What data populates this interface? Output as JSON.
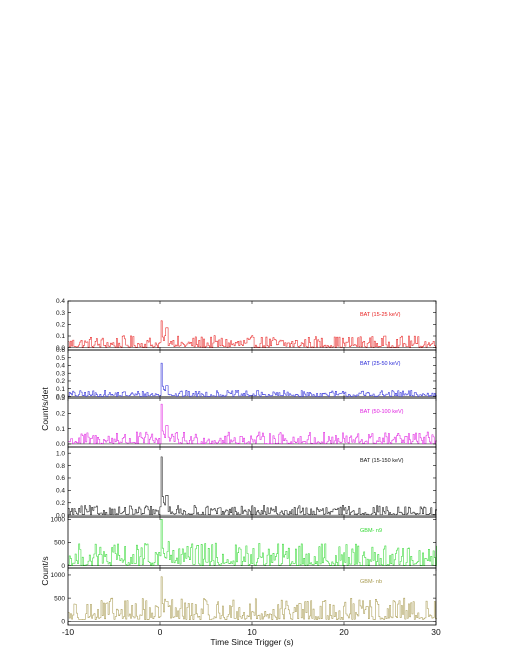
{
  "chart_data": {
    "type": "line",
    "xlabel": "Time Since Trigger (s)",
    "ylabel_groups": [
      {
        "label": "Count/s/det",
        "panels": [
          0,
          1,
          2,
          3
        ]
      },
      {
        "label": "Count/s",
        "panels": [
          4,
          5
        ]
      }
    ],
    "xlim": [
      -10,
      30
    ],
    "xticks": [
      -10,
      0,
      10,
      20,
      30
    ],
    "x_start": -10,
    "x_step": 0.128,
    "panels": [
      {
        "name": "BAT (15-25 keV)",
        "color": "#e82020",
        "ylim": [
          -0.02,
          0.4
        ],
        "yticks": [
          0.0,
          0.1,
          0.2,
          0.3,
          0.4
        ],
        "peak": {
          "x": 0.1,
          "y": 0.23
        },
        "second_peak": {
          "x": 0.7,
          "y": 0.17
        },
        "noise": 0.045,
        "baseline": 0.015,
        "spikes": []
      },
      {
        "name": "BAT (25-50 keV)",
        "color": "#2a2ad8",
        "ylim": [
          -0.02,
          0.6
        ],
        "yticks": [
          0.0,
          0.1,
          0.2,
          0.3,
          0.4,
          0.5,
          0.6
        ],
        "peak": {
          "x": 0.1,
          "y": 0.43
        },
        "second_peak": {
          "x": 0.7,
          "y": 0.14
        },
        "noise": 0.035,
        "baseline": 0.01,
        "spikes": []
      },
      {
        "name": "BAT (50-100 keV)",
        "color": "#e020e0",
        "ylim": [
          -0.02,
          0.3
        ],
        "yticks": [
          0.0,
          0.1,
          0.2,
          0.3
        ],
        "peak": {
          "x": 0.1,
          "y": 0.26
        },
        "second_peak": {
          "x": 0.7,
          "y": 0.12
        },
        "noise": 0.035,
        "baseline": 0.01,
        "spikes": [
          {
            "x": -4.8,
            "y": 0.07
          }
        ]
      },
      {
        "name": "BAT (15-150 keV)",
        "color": "#111111",
        "ylim": [
          -0.03,
          1.1
        ],
        "yticks": [
          0.0,
          0.2,
          0.4,
          0.6,
          0.8,
          1.0
        ],
        "peak": {
          "x": 0.1,
          "y": 0.94
        },
        "second_peak": {
          "x": 0.7,
          "y": 0.32
        },
        "noise": 0.07,
        "baseline": 0.02,
        "spikes": []
      },
      {
        "name": "GBM- n9",
        "color": "#30d830",
        "ylim": [
          -50,
          1050
        ],
        "yticks": [
          0,
          500,
          1000
        ],
        "peak": {
          "x": 0.1,
          "y": 1000
        },
        "second_peak": {
          "x": 0.9,
          "y": 520
        },
        "noise": 220,
        "baseline": 60,
        "spikes": [
          {
            "x": 17.9,
            "y": 470
          }
        ]
      },
      {
        "name": "GBM- nb",
        "color": "#a89a50",
        "ylim": [
          -80,
          1150
        ],
        "yticks": [
          0,
          500,
          1000
        ],
        "peak": {
          "x": 0.1,
          "y": 960
        },
        "second_peak": {
          "x": 0.7,
          "y": 430
        },
        "noise": 210,
        "baseline": 90,
        "spikes": []
      }
    ]
  }
}
